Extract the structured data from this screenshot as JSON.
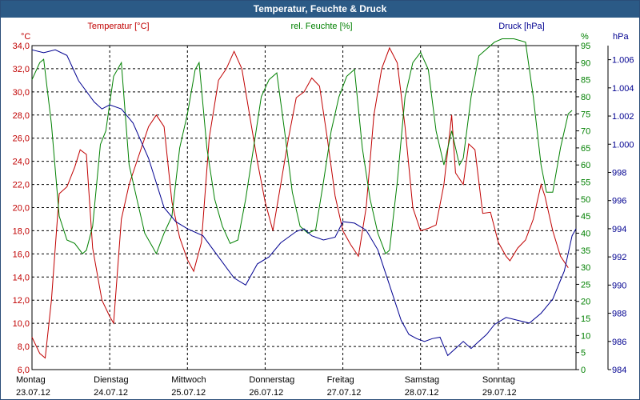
{
  "window": {
    "title": "Temperatur, Feuchte & Druck"
  },
  "chart_data": {
    "type": "line",
    "title": "Temperatur, Feuchte & Druck",
    "grid": true,
    "axes": {
      "temp": {
        "label": "Temperatur [°C]",
        "unit": "°C",
        "min": 6.0,
        "max": 34.0,
        "ticks": [
          "34,0",
          "32,0",
          "30,0",
          "28,0",
          "26,0",
          "24,0",
          "22,0",
          "20,0",
          "18,0",
          "16,0",
          "14,0",
          "12,0",
          "10,0",
          "8,0",
          "6,0"
        ],
        "color": "#c00000"
      },
      "hum": {
        "label": "rel. Feuchte [%]",
        "unit": "%",
        "min": 0,
        "max": 95,
        "ticks": [
          "95",
          "90",
          "85",
          "80",
          "75",
          "70",
          "65",
          "60",
          "55",
          "50",
          "45",
          "40",
          "35",
          "30",
          "25",
          "20",
          "15",
          "10",
          "5",
          "0"
        ],
        "color": "#008000"
      },
      "press": {
        "label": "Druck [hPa]",
        "unit": "hPa",
        "min": 984,
        "max": 1007,
        "ticks": [
          "1.006",
          "1.004",
          "1.002",
          "1.000",
          "998",
          "996",
          "994",
          "992",
          "990",
          "988",
          "986",
          "984"
        ],
        "color": "#000090"
      }
    },
    "x_labels": [
      {
        "day": "Montag",
        "date": "23.07.12"
      },
      {
        "day": "Dienstag",
        "date": "24.07.12"
      },
      {
        "day": "Mittwoch",
        "date": "25.07.12"
      },
      {
        "day": "Donnerstag",
        "date": "26.07.12"
      },
      {
        "day": "Freitag",
        "date": "27.07.12"
      },
      {
        "day": "Samstag",
        "date": "28.07.12"
      },
      {
        "day": "Sonntag",
        "date": "29.07.12"
      }
    ],
    "x_range_days": [
      0,
      7.0
    ],
    "series": [
      {
        "name": "Temperatur [°C]",
        "axis": "temp",
        "color": "#c00000",
        "points": [
          [
            0,
            8.8
          ],
          [
            0.1,
            7.4
          ],
          [
            0.17,
            7.0
          ],
          [
            0.25,
            12
          ],
          [
            0.35,
            21.2
          ],
          [
            0.45,
            21.8
          ],
          [
            0.55,
            23.5
          ],
          [
            0.62,
            25.0
          ],
          [
            0.7,
            24.6
          ],
          [
            0.78,
            16.5
          ],
          [
            0.9,
            12
          ],
          [
            1.0,
            10.6
          ],
          [
            1.05,
            10.0
          ],
          [
            1.15,
            19
          ],
          [
            1.25,
            22
          ],
          [
            1.35,
            24
          ],
          [
            1.5,
            27
          ],
          [
            1.6,
            28
          ],
          [
            1.7,
            27
          ],
          [
            1.8,
            20.5
          ],
          [
            1.9,
            17.4
          ],
          [
            2.0,
            15.5
          ],
          [
            2.08,
            14.5
          ],
          [
            2.18,
            17
          ],
          [
            2.28,
            26
          ],
          [
            2.4,
            31
          ],
          [
            2.5,
            32
          ],
          [
            2.6,
            33.5
          ],
          [
            2.7,
            32
          ],
          [
            2.8,
            28
          ],
          [
            2.9,
            24
          ],
          [
            3.0,
            20.5
          ],
          [
            3.1,
            18
          ],
          [
            3.2,
            22
          ],
          [
            3.3,
            26
          ],
          [
            3.4,
            29.5
          ],
          [
            3.5,
            30
          ],
          [
            3.6,
            31.2
          ],
          [
            3.7,
            30.5
          ],
          [
            3.8,
            26
          ],
          [
            3.9,
            21
          ],
          [
            4.0,
            18
          ],
          [
            4.1,
            16.8
          ],
          [
            4.2,
            15.8
          ],
          [
            4.3,
            20
          ],
          [
            4.4,
            28
          ],
          [
            4.5,
            32
          ],
          [
            4.6,
            33.8
          ],
          [
            4.7,
            32.5
          ],
          [
            4.8,
            27
          ],
          [
            4.9,
            20
          ],
          [
            5.0,
            18
          ],
          [
            5.1,
            18.2
          ],
          [
            5.2,
            18.5
          ],
          [
            5.3,
            22
          ],
          [
            5.4,
            28
          ],
          [
            5.45,
            23
          ],
          [
            5.55,
            22
          ],
          [
            5.62,
            25.5
          ],
          [
            5.7,
            25
          ],
          [
            5.8,
            19.5
          ],
          [
            5.9,
            19.6
          ],
          [
            6.0,
            17
          ],
          [
            6.1,
            15.8
          ],
          [
            6.15,
            15.4
          ],
          [
            6.25,
            16.5
          ],
          [
            6.35,
            17.2
          ],
          [
            6.45,
            19
          ],
          [
            6.55,
            22
          ],
          [
            6.6,
            21
          ],
          [
            6.7,
            18
          ],
          [
            6.8,
            15.8
          ],
          [
            6.9,
            14.8
          ]
        ]
      },
      {
        "name": "rel. Feuchte [%]",
        "axis": "hum",
        "color": "#008000",
        "points": [
          [
            0,
            85
          ],
          [
            0.1,
            90
          ],
          [
            0.15,
            91
          ],
          [
            0.25,
            72
          ],
          [
            0.35,
            45
          ],
          [
            0.45,
            38
          ],
          [
            0.55,
            37
          ],
          [
            0.65,
            34
          ],
          [
            0.7,
            35
          ],
          [
            0.78,
            42
          ],
          [
            0.88,
            66
          ],
          [
            0.95,
            70
          ],
          [
            1.05,
            86
          ],
          [
            1.15,
            90
          ],
          [
            1.25,
            60
          ],
          [
            1.35,
            50
          ],
          [
            1.45,
            40
          ],
          [
            1.55,
            36
          ],
          [
            1.6,
            34
          ],
          [
            1.7,
            40
          ],
          [
            1.8,
            45
          ],
          [
            1.9,
            65
          ],
          [
            2.0,
            75
          ],
          [
            2.1,
            88
          ],
          [
            2.15,
            90
          ],
          [
            2.25,
            65
          ],
          [
            2.35,
            50
          ],
          [
            2.45,
            42
          ],
          [
            2.55,
            37
          ],
          [
            2.65,
            38
          ],
          [
            2.75,
            50
          ],
          [
            2.85,
            65
          ],
          [
            2.95,
            80
          ],
          [
            3.05,
            85
          ],
          [
            3.15,
            87
          ],
          [
            3.25,
            70
          ],
          [
            3.35,
            52
          ],
          [
            3.45,
            42
          ],
          [
            3.55,
            40
          ],
          [
            3.65,
            41
          ],
          [
            3.75,
            55
          ],
          [
            3.85,
            70
          ],
          [
            3.95,
            80
          ],
          [
            4.05,
            86
          ],
          [
            4.15,
            88
          ],
          [
            4.25,
            65
          ],
          [
            4.35,
            50
          ],
          [
            4.45,
            40
          ],
          [
            4.55,
            34
          ],
          [
            4.6,
            35
          ],
          [
            4.7,
            55
          ],
          [
            4.8,
            80
          ],
          [
            4.9,
            90
          ],
          [
            5.0,
            93
          ],
          [
            5.1,
            88
          ],
          [
            5.2,
            70
          ],
          [
            5.3,
            60
          ],
          [
            5.4,
            70
          ],
          [
            5.5,
            60
          ],
          [
            5.55,
            62
          ],
          [
            5.65,
            80
          ],
          [
            5.75,
            92
          ],
          [
            5.85,
            94
          ],
          [
            5.95,
            96
          ],
          [
            6.05,
            97
          ],
          [
            6.2,
            97
          ],
          [
            6.35,
            96
          ],
          [
            6.45,
            80
          ],
          [
            6.55,
            60
          ],
          [
            6.62,
            52
          ],
          [
            6.7,
            52
          ],
          [
            6.8,
            65
          ],
          [
            6.9,
            75
          ],
          [
            6.95,
            76
          ]
        ]
      },
      {
        "name": "Druck [hPa]",
        "axis": "press",
        "color": "#000090",
        "points": [
          [
            0,
            1006.7
          ],
          [
            0.15,
            1006.5
          ],
          [
            0.3,
            1006.7
          ],
          [
            0.45,
            1006.3
          ],
          [
            0.6,
            1004.5
          ],
          [
            0.8,
            1003
          ],
          [
            0.9,
            1002.5
          ],
          [
            1.0,
            1002.8
          ],
          [
            1.15,
            1002.5
          ],
          [
            1.3,
            1001.5
          ],
          [
            1.5,
            999
          ],
          [
            1.7,
            995.5
          ],
          [
            1.85,
            994.5
          ],
          [
            2.0,
            994
          ],
          [
            2.2,
            993.5
          ],
          [
            2.4,
            992
          ],
          [
            2.6,
            990.5
          ],
          [
            2.75,
            990
          ],
          [
            2.9,
            991.5
          ],
          [
            3.05,
            992
          ],
          [
            3.2,
            993
          ],
          [
            3.4,
            993.8
          ],
          [
            3.5,
            994
          ],
          [
            3.6,
            993.5
          ],
          [
            3.75,
            993.2
          ],
          [
            3.9,
            993.4
          ],
          [
            4.0,
            994.5
          ],
          [
            4.15,
            994.4
          ],
          [
            4.3,
            993.9
          ],
          [
            4.45,
            992.5
          ],
          [
            4.6,
            990
          ],
          [
            4.75,
            987.5
          ],
          [
            4.85,
            986.5
          ],
          [
            4.95,
            986.2
          ],
          [
            5.05,
            986
          ],
          [
            5.15,
            986.2
          ],
          [
            5.25,
            986.3
          ],
          [
            5.35,
            985
          ],
          [
            5.45,
            985.5
          ],
          [
            5.55,
            986
          ],
          [
            5.65,
            985.5
          ],
          [
            5.75,
            986
          ],
          [
            5.85,
            986.5
          ],
          [
            5.95,
            987.2
          ],
          [
            6.1,
            987.7
          ],
          [
            6.25,
            987.5
          ],
          [
            6.4,
            987.3
          ],
          [
            6.55,
            988
          ],
          [
            6.7,
            989
          ],
          [
            6.85,
            991
          ],
          [
            6.95,
            993.5
          ],
          [
            7.0,
            994
          ]
        ]
      }
    ]
  }
}
